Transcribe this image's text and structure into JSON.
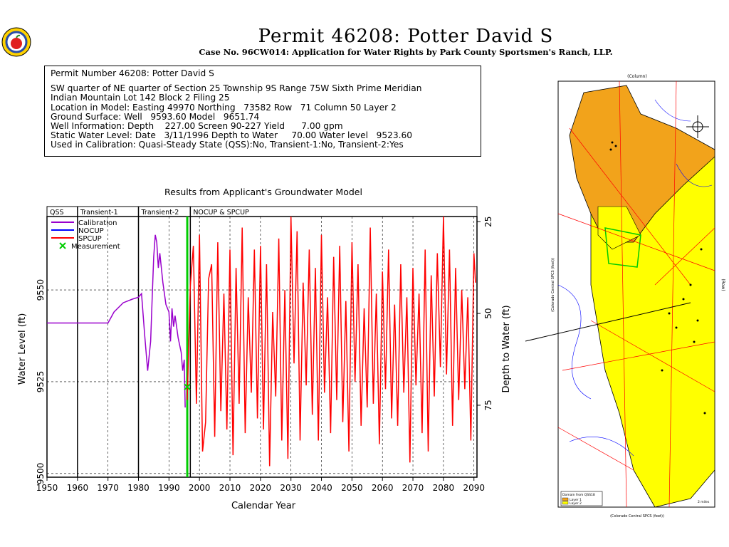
{
  "header": {
    "title": "Permit 46208:  Potter David S",
    "subtitle": "Case No. 96CW014: Application for Water Rights by Park County Sportsmen's Ranch, LLP."
  },
  "logo": {
    "icon": "apple-seal-icon"
  },
  "info": {
    "line1": "Permit Number 46208: Potter David S",
    "line2": "SW quarter of NE quarter of Section 25 Township 9S Range 75W Sixth Prime Meridian",
    "line3": "Indian Mountain Lot 142 Block 2 Filing 25",
    "line4": "Location in Model: Easting 49970 Northing   73582 Row   71 Column 50 Layer 2",
    "line5": "Ground Surface: Well   9593.60 Model   9651.74",
    "line6": "Well Information: Depth    227.00 Screen 90-227 Yield      7.00 gpm",
    "line7": "Static Water Level: Date   3/11/1996 Depth to Water     70.00 Water level   9523.60",
    "line8": "Used in Calibration: Quasi-Steady State (QSS):No, Transient-1:No, Transient-2:Yes"
  },
  "chart_data": {
    "type": "line",
    "title": "Results from Applicant's Groundwater Model",
    "xlabel": "Calendar Year",
    "ylabel": "Water Level (ft)",
    "y2label": "Depth to Water (ft)",
    "xlim": [
      1950,
      2091
    ],
    "ylim": [
      9499,
      9570
    ],
    "xticks": [
      1950,
      1960,
      1970,
      1980,
      1990,
      2000,
      2010,
      2020,
      2030,
      2040,
      2050,
      2060,
      2070,
      2080,
      2090
    ],
    "yticks": [
      9500,
      9525,
      9550
    ],
    "y2ticks": [
      25,
      50,
      75
    ],
    "periods": [
      "QSS",
      "Transient-1",
      "Transient-2",
      "NOCUP  &  SPCUP"
    ],
    "period_boundaries": [
      1960,
      1980,
      1997
    ],
    "legend_position": "top-left",
    "series": [
      {
        "name": "Calibration",
        "color": "#9900cc",
        "points": [
          [
            1950,
            9541
          ],
          [
            1960,
            9541
          ],
          [
            1970,
            9541
          ],
          [
            1972,
            9544
          ],
          [
            1975,
            9546.5
          ],
          [
            1978,
            9547.5
          ],
          [
            1980,
            9548
          ],
          [
            1981,
            9549
          ],
          [
            1982,
            9538
          ],
          [
            1983,
            9528
          ],
          [
            1984,
            9536
          ],
          [
            1984.5,
            9548
          ],
          [
            1985,
            9559
          ],
          [
            1985.5,
            9565
          ],
          [
            1986,
            9563
          ],
          [
            1986.5,
            9556
          ],
          [
            1987,
            9560
          ],
          [
            1988,
            9552
          ],
          [
            1989,
            9546
          ],
          [
            1990,
            9544
          ],
          [
            1990.5,
            9536
          ],
          [
            1991,
            9545
          ],
          [
            1991.5,
            9540
          ],
          [
            1992,
            9543
          ],
          [
            1993,
            9537
          ],
          [
            1994,
            9533
          ],
          [
            1994.5,
            9528
          ],
          [
            1995,
            9531
          ],
          [
            1995.3,
            9518
          ]
        ]
      },
      {
        "name": "NOCUP",
        "color": "#0000ff",
        "points": []
      },
      {
        "name": "SPCUP",
        "color": "#ff0000",
        "points": [
          [
            1996,
            9520
          ],
          [
            1997,
            9551
          ],
          [
            1998,
            9562
          ],
          [
            1999,
            9519
          ],
          [
            2000,
            9565
          ],
          [
            2001,
            9506
          ],
          [
            2002,
            9514
          ],
          [
            2003,
            9553
          ],
          [
            2004,
            9557
          ],
          [
            2005,
            9510
          ],
          [
            2006,
            9563
          ],
          [
            2007,
            9517
          ],
          [
            2008,
            9549
          ],
          [
            2009,
            9512
          ],
          [
            2010,
            9561
          ],
          [
            2011,
            9505
          ],
          [
            2012,
            9556
          ],
          [
            2013,
            9519
          ],
          [
            2014,
            9567
          ],
          [
            2015,
            9511
          ],
          [
            2016,
            9548
          ],
          [
            2017,
            9522
          ],
          [
            2018,
            9561
          ],
          [
            2019,
            9515
          ],
          [
            2020,
            9562
          ],
          [
            2021,
            9512
          ],
          [
            2022,
            9557
          ],
          [
            2023,
            9502
          ],
          [
            2024,
            9544
          ],
          [
            2025,
            9521
          ],
          [
            2026,
            9564
          ],
          [
            2027,
            9509
          ],
          [
            2028,
            9550
          ],
          [
            2029,
            9504
          ],
          [
            2030,
            9570
          ],
          [
            2031,
            9530
          ],
          [
            2032,
            9566
          ],
          [
            2033,
            9509
          ],
          [
            2034,
            9552
          ],
          [
            2035,
            9524
          ],
          [
            2036,
            9561
          ],
          [
            2037,
            9516
          ],
          [
            2038,
            9556
          ],
          [
            2039,
            9509
          ],
          [
            2040,
            9565
          ],
          [
            2041,
            9522
          ],
          [
            2042,
            9548
          ],
          [
            2043,
            9511
          ],
          [
            2044,
            9559
          ],
          [
            2045,
            9520
          ],
          [
            2046,
            9562
          ],
          [
            2047,
            9514
          ],
          [
            2048,
            9547
          ],
          [
            2049,
            9506
          ],
          [
            2050,
            9563
          ],
          [
            2051,
            9525
          ],
          [
            2052,
            9557
          ],
          [
            2053,
            9513
          ],
          [
            2054,
            9545
          ],
          [
            2055,
            9518
          ],
          [
            2056,
            9567
          ],
          [
            2057,
            9519
          ],
          [
            2058,
            9549
          ],
          [
            2059,
            9508
          ],
          [
            2060,
            9555
          ],
          [
            2061,
            9523
          ],
          [
            2062,
            9561
          ],
          [
            2063,
            9515
          ],
          [
            2064,
            9546
          ],
          [
            2065,
            9513
          ],
          [
            2066,
            9557
          ],
          [
            2067,
            9522
          ],
          [
            2068,
            9548
          ],
          [
            2069,
            9503
          ],
          [
            2070,
            9556
          ],
          [
            2071,
            9524
          ],
          [
            2072,
            9549
          ],
          [
            2073,
            9511
          ],
          [
            2074,
            9561
          ],
          [
            2075,
            9506
          ],
          [
            2076,
            9554
          ],
          [
            2077,
            9521
          ],
          [
            2078,
            9560
          ],
          [
            2079,
            9529
          ],
          [
            2080,
            9570
          ],
          [
            2081,
            9527
          ],
          [
            2082,
            9561
          ],
          [
            2083,
            9513
          ],
          [
            2084,
            9556
          ],
          [
            2085,
            9520
          ],
          [
            2086,
            9550
          ],
          [
            2087,
            9523
          ],
          [
            2088,
            9548
          ],
          [
            2089,
            9509
          ],
          [
            2090,
            9560
          ],
          [
            2090.5,
            9552
          ]
        ]
      }
    ],
    "measurement": {
      "name": "Measurement",
      "color": "#00cc00",
      "x": 1996,
      "y": 9523.6
    },
    "marker_year": 1996
  },
  "map": {
    "top_label": "(Column)",
    "left_label": "(Colorado Central SPCS (feet))",
    "right_label": "(Row)",
    "bottom_label": "(Colorado Central SPCS (feet))",
    "legend_title": "Domain from QSS18",
    "legend_layer1": "Layer 1",
    "legend_layer2": "Layer 2",
    "scale_label": "2 miles",
    "colors": {
      "layer1": "#f2a31b",
      "layer2": "#ffff00",
      "green": "#00ff00",
      "roads": "#ff0000",
      "streams": "#0000ff"
    }
  }
}
